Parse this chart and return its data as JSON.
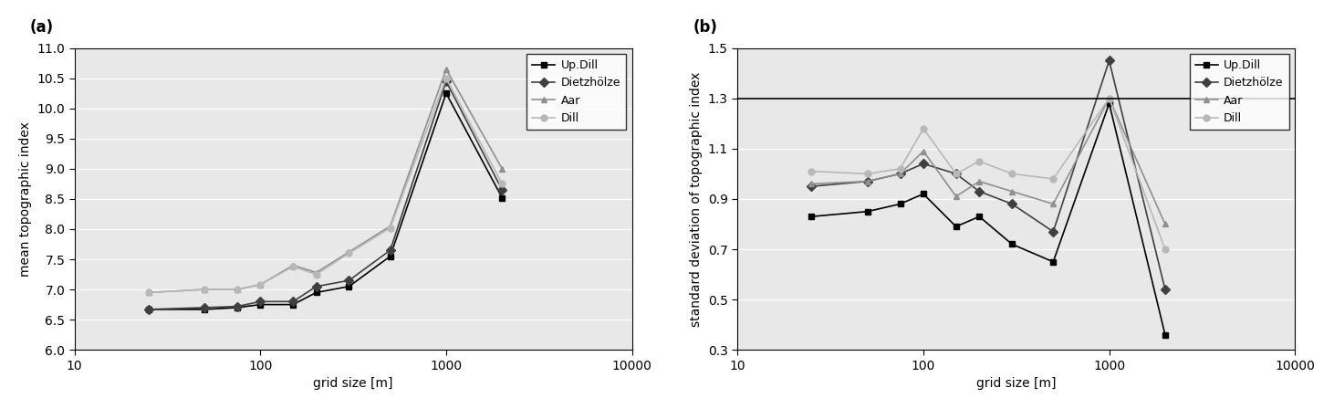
{
  "x_values": [
    25,
    50,
    75,
    100,
    150,
    200,
    300,
    500,
    1000,
    2000
  ],
  "mean_Up_Dill": [
    6.67,
    6.67,
    6.7,
    6.75,
    6.75,
    6.95,
    7.05,
    7.55,
    10.25,
    8.52
  ],
  "mean_Dietzhölze": [
    6.67,
    6.7,
    6.72,
    6.8,
    6.8,
    7.05,
    7.15,
    7.65,
    10.45,
    8.65
  ],
  "mean_Aar": [
    6.95,
    7.0,
    7.0,
    7.08,
    7.4,
    7.28,
    7.62,
    8.05,
    10.65,
    9.0
  ],
  "mean_Dill": [
    6.95,
    7.0,
    7.0,
    7.08,
    7.38,
    7.25,
    7.6,
    8.02,
    10.5,
    8.75
  ],
  "std_Up_Dill": [
    0.83,
    0.85,
    0.88,
    0.92,
    0.79,
    0.83,
    0.72,
    0.65,
    1.28,
    0.36
  ],
  "std_Dietzhölze": [
    0.95,
    0.97,
    1.0,
    1.04,
    1.0,
    0.93,
    0.88,
    0.77,
    1.45,
    0.54
  ],
  "std_Aar": [
    0.96,
    0.97,
    1.0,
    1.09,
    0.91,
    0.97,
    0.93,
    0.88,
    1.3,
    0.8
  ],
  "std_Dill": [
    1.01,
    1.0,
    1.02,
    1.18,
    1.0,
    1.05,
    1.0,
    0.98,
    1.3,
    0.7
  ],
  "color_Up_Dill": "#000000",
  "color_Dietzhölze": "#404040",
  "color_Aar": "#909090",
  "color_Dill": "#b8b8b8",
  "marker_Up_Dill": "s",
  "marker_Dietzhölze": "D",
  "marker_Aar": "^",
  "marker_Dill": "o",
  "ylabel_a": "mean topographic index",
  "ylabel_b": "standard deviation of topographic index",
  "xlabel": "grid size [m]",
  "ylim_a": [
    6.0,
    11.0
  ],
  "ylim_b": [
    0.3,
    1.5
  ],
  "yticks_a": [
    6.0,
    6.5,
    7.0,
    7.5,
    8.0,
    8.5,
    9.0,
    9.5,
    10.0,
    10.5,
    11.0
  ],
  "yticks_b": [
    0.3,
    0.5,
    0.7,
    0.9,
    1.1,
    1.3,
    1.5
  ],
  "hline_b": 1.3,
  "label_a": "(a)",
  "label_b": "(b)",
  "legend_labels": [
    "Up.Dill",
    "Dietzhölze",
    "Aar",
    "Dill"
  ],
  "facecolor": "#e8e8e8",
  "gridcolor": "#ffffff",
  "markersize": 5,
  "linewidth": 1.2
}
